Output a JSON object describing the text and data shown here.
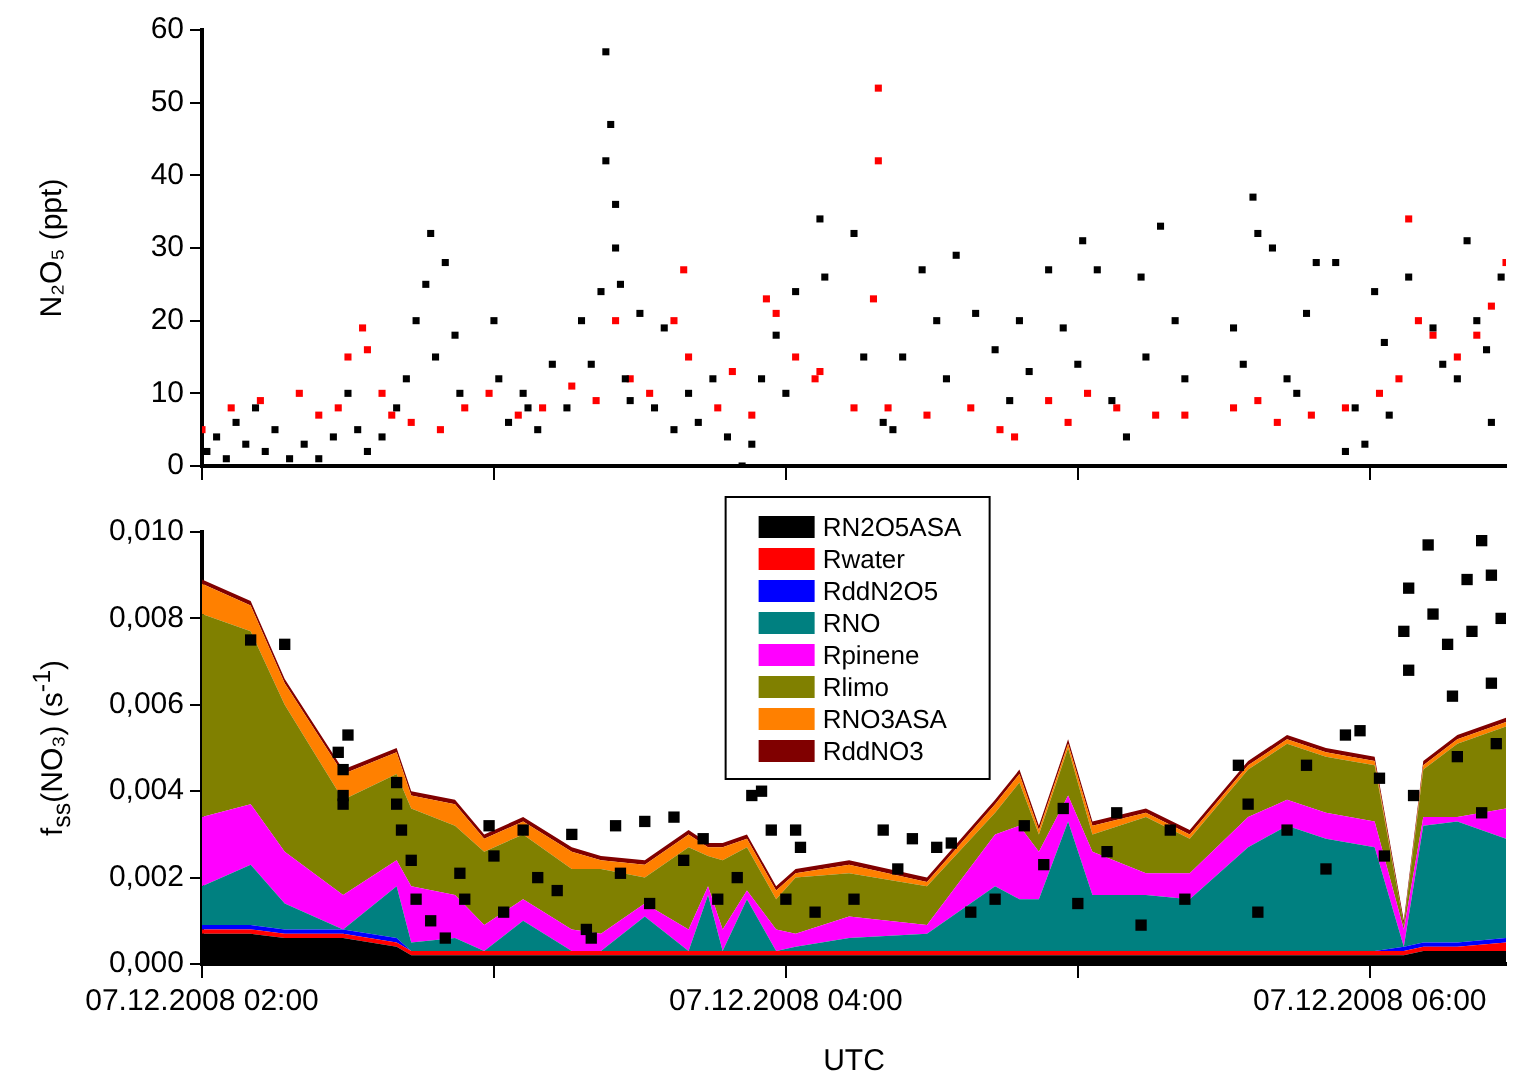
{
  "chart_data": [
    {
      "type": "scatter",
      "ylabel": "N₂O₅ (ppt)",
      "marker": "square",
      "tick_labels": "y",
      "xlim": [
        "2008-12-07T02:00",
        "2008-12-07T06:28"
      ],
      "ylim": [
        0,
        60
      ],
      "yticks": [
        0,
        10,
        20,
        30,
        40,
        50,
        60
      ],
      "xticks": [
        {
          "value": "2008-12-07T02:00",
          "label": null
        },
        {
          "value": "2008-12-07T03:00",
          "label": null
        },
        {
          "value": "2008-12-07T04:00",
          "label": null
        },
        {
          "value": "2008-12-07T05:00",
          "label": null
        },
        {
          "value": "2008-12-07T06:00",
          "label": null
        }
      ],
      "series": [
        {
          "color": "#000000",
          "x": [
            "2008-12-07T02:01",
            "2008-12-07T02:03",
            "2008-12-07T02:05",
            "2008-12-07T02:07",
            "2008-12-07T02:09",
            "2008-12-07T02:11",
            "2008-12-07T02:13",
            "2008-12-07T02:15",
            "2008-12-07T02:18",
            "2008-12-07T02:21",
            "2008-12-07T02:24",
            "2008-12-07T02:27",
            "2008-12-07T02:30",
            "2008-12-07T02:32",
            "2008-12-07T02:34",
            "2008-12-07T02:37",
            "2008-12-07T02:40",
            "2008-12-07T02:42",
            "2008-12-07T02:44",
            "2008-12-07T02:46",
            "2008-12-07T02:47",
            "2008-12-07T02:48",
            "2008-12-07T02:50",
            "2008-12-07T02:52",
            "2008-12-07T02:53",
            "2008-12-07T03:00",
            "2008-12-07T03:01",
            "2008-12-07T03:03",
            "2008-12-07T03:06",
            "2008-12-07T03:09",
            "2008-12-07T03:12",
            "2008-12-07T03:15",
            "2008-12-07T03:18",
            "2008-12-07T03:20",
            "2008-12-07T03:22",
            "2008-12-07T03:23",
            "2008-12-07T03:23",
            "2008-12-07T03:24",
            "2008-12-07T03:25",
            "2008-12-07T03:25",
            "2008-12-07T03:26",
            "2008-12-07T03:27",
            "2008-12-07T03:30",
            "2008-12-07T03:33",
            "2008-12-07T03:35",
            "2008-12-07T03:37",
            "2008-12-07T03:40",
            "2008-12-07T03:42",
            "2008-12-07T03:45",
            "2008-12-07T03:48",
            "2008-12-07T03:51",
            "2008-12-07T03:53",
            "2008-12-07T03:55",
            "2008-12-07T03:58",
            "2008-12-07T04:00",
            "2008-12-07T04:02",
            "2008-12-07T04:07",
            "2008-12-07T04:08",
            "2008-12-07T04:14",
            "2008-12-07T04:16",
            "2008-12-07T04:20",
            "2008-12-07T04:22",
            "2008-12-07T04:28",
            "2008-12-07T04:31",
            "2008-12-07T04:35",
            "2008-12-07T04:39",
            "2008-12-07T04:43",
            "2008-12-07T04:46",
            "2008-12-07T04:50",
            "2008-12-07T04:54",
            "2008-12-07T04:57",
            "2008-12-07T05:01",
            "2008-12-07T05:04",
            "2008-12-07T05:07",
            "2008-12-07T05:10",
            "2008-12-07T05:13",
            "2008-12-07T05:17",
            "2008-12-07T05:20",
            "2008-12-07T05:22",
            "2008-12-07T05:32",
            "2008-12-07T05:36",
            "2008-12-07T05:37",
            "2008-12-07T05:40",
            "2008-12-07T05:43",
            "2008-12-07T05:47",
            "2008-12-07T05:49",
            "2008-12-07T05:53",
            "2008-12-07T05:55",
            "2008-12-07T05:57",
            "2008-12-07T06:01",
            "2008-12-07T06:03",
            "2008-12-07T06:04",
            "2008-12-07T06:08",
            "2008-12-07T06:13",
            "2008-12-07T06:18",
            "2008-12-07T06:20",
            "2008-12-07T06:22",
            "2008-12-07T06:25",
            "2008-12-07T06:27",
            "2008-12-07T03:07",
            "2008-12-07T03:28",
            "2008-12-07T04:24",
            "2008-12-07T04:33",
            "2008-12-07T04:48",
            "2008-12-07T05:00",
            "2008-12-07T05:14",
            "2008-12-07T05:34",
            "2008-12-07T05:45",
            "2008-12-07T05:59",
            "2008-12-07T06:15",
            "2008-12-07T06:24"
          ],
          "values": [
            2,
            4,
            1,
            6,
            3,
            8,
            2,
            5,
            1,
            3,
            1,
            4,
            10,
            5,
            2,
            4,
            8,
            12,
            20,
            25,
            32,
            15,
            28,
            18,
            10,
            20,
            12,
            6,
            10,
            5,
            14,
            8,
            20,
            14,
            24,
            42,
            57,
            47,
            36,
            30,
            25,
            12,
            21,
            8,
            19,
            5,
            10,
            6,
            12,
            4,
            0,
            3,
            12,
            18,
            10,
            24,
            34,
            26,
            32,
            15,
            6,
            5,
            27,
            20,
            29,
            21,
            16,
            9,
            13,
            27,
            19,
            31,
            27,
            9,
            4,
            26,
            33,
            20,
            12,
            19,
            37,
            32,
            30,
            12,
            21,
            28,
            28,
            2,
            8,
            24,
            17,
            7,
            26,
            19,
            12,
            31,
            20,
            6,
            26,
            8,
            9,
            15,
            12,
            20,
            14,
            15,
            14,
            10,
            3,
            14,
            16
          ]
        },
        {
          "color": "#ff0000",
          "x": [
            "2008-12-07T02:00",
            "2008-12-07T02:06",
            "2008-12-07T02:12",
            "2008-12-07T02:20",
            "2008-12-07T02:24",
            "2008-12-07T02:28",
            "2008-12-07T02:30",
            "2008-12-07T02:33",
            "2008-12-07T02:34",
            "2008-12-07T02:37",
            "2008-12-07T02:39",
            "2008-12-07T02:43",
            "2008-12-07T02:49",
            "2008-12-07T02:54",
            "2008-12-07T02:59",
            "2008-12-07T03:05",
            "2008-12-07T03:10",
            "2008-12-07T03:16",
            "2008-12-07T03:21",
            "2008-12-07T03:25",
            "2008-12-07T03:28",
            "2008-12-07T03:32",
            "2008-12-07T03:37",
            "2008-12-07T03:39",
            "2008-12-07T03:40",
            "2008-12-07T03:46",
            "2008-12-07T03:49",
            "2008-12-07T03:53",
            "2008-12-07T03:56",
            "2008-12-07T03:58",
            "2008-12-07T04:02",
            "2008-12-07T04:06",
            "2008-12-07T04:07",
            "2008-12-07T04:14",
            "2008-12-07T04:18",
            "2008-12-07T04:19",
            "2008-12-07T04:19",
            "2008-12-07T04:21",
            "2008-12-07T04:29",
            "2008-12-07T04:38",
            "2008-12-07T04:44",
            "2008-12-07T04:47",
            "2008-12-07T04:54",
            "2008-12-07T04:58",
            "2008-12-07T05:02",
            "2008-12-07T05:08",
            "2008-12-07T05:16",
            "2008-12-07T05:22",
            "2008-12-07T05:32",
            "2008-12-07T05:37",
            "2008-12-07T05:41",
            "2008-12-07T05:48",
            "2008-12-07T05:55",
            "2008-12-07T06:02",
            "2008-12-07T06:06",
            "2008-12-07T06:08",
            "2008-12-07T06:10",
            "2008-12-07T06:13",
            "2008-12-07T06:18",
            "2008-12-07T06:22",
            "2008-12-07T06:25",
            "2008-12-07T06:28"
          ],
          "values": [
            5,
            8,
            9,
            10,
            7,
            8,
            15,
            19,
            16,
            10,
            7,
            6,
            5,
            8,
            10,
            7,
            8,
            11,
            9,
            20,
            12,
            10,
            20,
            27,
            15,
            8,
            13,
            7,
            23,
            21,
            15,
            12,
            13,
            8,
            23,
            42,
            52,
            8,
            7,
            8,
            5,
            4,
            9,
            6,
            10,
            8,
            7,
            7,
            8,
            9,
            6,
            7,
            8,
            10,
            12,
            34,
            20,
            18,
            15,
            18,
            22,
            28
          ]
        }
      ]
    },
    {
      "type": "area",
      "stacked": true,
      "ylabel": "f$_{ss}$(NO₃) (s$^{-1}$)",
      "xlabel": "UTC",
      "legend": "top",
      "xlim": [
        "2008-12-07T02:00",
        "2008-12-07T06:28"
      ],
      "ylim": [
        0,
        0.01
      ],
      "yticks": [
        {
          "value": 0,
          "label": "0,000"
        },
        {
          "value": 0.002,
          "label": "0,002"
        },
        {
          "value": 0.004,
          "label": "0,004"
        },
        {
          "value": 0.006,
          "label": "0,006"
        },
        {
          "value": 0.008,
          "label": "0,008"
        },
        {
          "value": 0.01,
          "label": "0,010"
        }
      ],
      "xticks": [
        {
          "value": "2008-12-07T02:00",
          "label": "07.12.2008 02:00"
        },
        {
          "value": "2008-12-07T03:00",
          "label": null
        },
        {
          "value": "2008-12-07T04:00",
          "label": "07.12.2008 04:00"
        },
        {
          "value": "2008-12-07T05:00",
          "label": null
        },
        {
          "value": "2008-12-07T06:00",
          "label": "07.12.2008 06:00"
        }
      ],
      "x": [
        "2008-12-07T02:00",
        "2008-12-07T02:10",
        "2008-12-07T02:17",
        "2008-12-07T02:29",
        "2008-12-07T02:40",
        "2008-12-07T02:43",
        "2008-12-07T02:52",
        "2008-12-07T02:58",
        "2008-12-07T03:06",
        "2008-12-07T03:16",
        "2008-12-07T03:22",
        "2008-12-07T03:31",
        "2008-12-07T03:40",
        "2008-12-07T03:44",
        "2008-12-07T03:47",
        "2008-12-07T03:52",
        "2008-12-07T03:58",
        "2008-12-07T04:02",
        "2008-12-07T04:13",
        "2008-12-07T04:29",
        "2008-12-07T04:43",
        "2008-12-07T04:48",
        "2008-12-07T04:52",
        "2008-12-07T04:58",
        "2008-12-07T05:03",
        "2008-12-07T05:14",
        "2008-12-07T05:23",
        "2008-12-07T05:35",
        "2008-12-07T05:43",
        "2008-12-07T05:51",
        "2008-12-07T06:01",
        "2008-12-07T06:07",
        "2008-12-07T06:11",
        "2008-12-07T06:18",
        "2008-12-07T06:28"
      ],
      "series": [
        {
          "name": "RN2O5ASA",
          "color": "#000000",
          "values": [
            0.0007,
            0.0007,
            0.0006,
            0.0006,
            0.0004,
            0.0002,
            0.0002,
            0.0002,
            0.0002,
            0.0002,
            0.0002,
            0.0002,
            0.0002,
            0.0002,
            0.0002,
            0.0002,
            0.0002,
            0.0002,
            0.0002,
            0.0002,
            0.0002,
            0.0002,
            0.0002,
            0.0002,
            0.0002,
            0.0002,
            0.0002,
            0.0002,
            0.0002,
            0.0002,
            0.0002,
            0.0002,
            0.0003,
            0.0003,
            0.0003
          ]
        },
        {
          "name": "Rwater",
          "color": "#ff0000",
          "values": [
            0.0001,
            0.0001,
            0.0001,
            0.0001,
            0.0001,
            0.0001,
            0.0001,
            0.0001,
            0.0001,
            0.0001,
            0.0001,
            0.0001,
            0.0001,
            0.0001,
            0.0001,
            0.0001,
            0.0001,
            0.0001,
            0.0001,
            0.0001,
            0.0001,
            0.0001,
            0.0001,
            0.0001,
            0.0001,
            0.0001,
            0.0001,
            0.0001,
            0.0001,
            0.0001,
            0.0001,
            0.0001,
            0.0001,
            0.0001,
            0.0002
          ]
        },
        {
          "name": "RddN2O5",
          "color": "#0000ff",
          "values": [
            0.0001,
            0.0001,
            0.0001,
            0.0001,
            0.0001,
            0,
            0,
            0,
            0,
            0,
            0,
            0,
            0,
            0,
            0,
            0,
            0,
            0,
            0,
            0,
            0,
            0,
            0,
            0,
            0,
            0,
            0,
            0,
            0,
            0,
            0,
            0.0001,
            0.0001,
            0.0001,
            0.0001
          ]
        },
        {
          "name": "RNO",
          "color": "#008080",
          "values": [
            0.0009,
            0.0014,
            0.0006,
            0,
            0.0012,
            0.0002,
            0.0003,
            0,
            0.0007,
            0,
            0,
            0.0008,
            0,
            0.0013,
            0,
            0.0012,
            0,
            0.0001,
            0.0003,
            0.0004,
            0.0015,
            0.0012,
            0.0012,
            0.003,
            0.0013,
            0.0013,
            0.0012,
            0.0024,
            0.0029,
            0.0026,
            0.0024,
            0,
            0.0027,
            0.0028,
            0.0023
          ]
        },
        {
          "name": "Rpinene",
          "color": "#ff00ff",
          "values": [
            0.0016,
            0.0014,
            0.0012,
            0.0008,
            0.0006,
            0.0013,
            0.001,
            0.0006,
            0.0005,
            0.0005,
            0.0004,
            0.0003,
            0.0005,
            0.0002,
            0.0005,
            0.0002,
            0.0005,
            0.0003,
            0.0005,
            0.0002,
            0.0012,
            0.0017,
            0.0011,
            0.0006,
            0.001,
            0.0005,
            0.0006,
            0.0007,
            0.0006,
            0.0006,
            0.0006,
            0.0004,
            0.0002,
            0.0001,
            0.0007
          ]
        },
        {
          "name": "Rlimo",
          "color": "#808000",
          "values": [
            0.0047,
            0.004,
            0.0034,
            0.0022,
            0.002,
            0.0018,
            0.0016,
            0.0017,
            0.0015,
            0.0014,
            0.0015,
            0.0006,
            0.0019,
            0.0007,
            0.0016,
            0.001,
            0.0007,
            0.0013,
            0.001,
            0.0009,
            0.0005,
            0.001,
            0.0004,
            0.0011,
            0.0004,
            0.0013,
            0.0008,
            0.0011,
            0.0013,
            0.0013,
            0.0013,
            0.0001,
            0.0011,
            0.0017,
            0.0019
          ]
        },
        {
          "name": "RNO3ASA",
          "color": "#ff8000",
          "values": [
            0.0007,
            0.0006,
            0.0005,
            0.0006,
            0.0005,
            0.0003,
            0.0005,
            0.0003,
            0.0003,
            0.0004,
            0.0002,
            0.0003,
            0.0003,
            0.0002,
            0.0003,
            0.0002,
            0.0002,
            0.0001,
            0.0002,
            0.0001,
            0.0002,
            0.0002,
            0.0001,
            0.0001,
            0.0002,
            0.0001,
            0.0001,
            0.0001,
            0.0001,
            0.0001,
            0.0001,
            0,
            0.0001,
            0.0001,
            0.0001
          ]
        },
        {
          "name": "RddNO3",
          "color": "#800000",
          "values": [
            0.0001,
            0.0001,
            0.0001,
            0.0001,
            0.0001,
            0.0001,
            0.0001,
            0.0001,
            0.0001,
            0.0001,
            0.0001,
            0.0001,
            0.0001,
            0.0001,
            0.0001,
            0.0001,
            0.0001,
            0.0001,
            0.0001,
            0.0001,
            0.0001,
            0.0001,
            0.0001,
            0.0001,
            0.0001,
            0.0001,
            0.0001,
            0.0001,
            0.0001,
            0.0001,
            0.0001,
            0.0001,
            0.0001,
            0.0001,
            0.0001
          ]
        },
        {
          "type": "scatter",
          "marker": "square",
          "color": "#000000",
          "x": [
            "2008-12-07T02:10",
            "2008-12-07T02:17",
            "2008-12-07T02:28",
            "2008-12-07T02:30",
            "2008-12-07T02:29",
            "2008-12-07T02:29",
            "2008-12-07T02:29",
            "2008-12-07T02:40",
            "2008-12-07T02:40",
            "2008-12-07T02:41",
            "2008-12-07T02:43",
            "2008-12-07T02:44",
            "2008-12-07T02:47",
            "2008-12-07T02:50",
            "2008-12-07T02:53",
            "2008-12-07T02:54",
            "2008-12-07T02:59",
            "2008-12-07T03:00",
            "2008-12-07T03:02",
            "2008-12-07T03:06",
            "2008-12-07T03:09",
            "2008-12-07T03:13",
            "2008-12-07T03:16",
            "2008-12-07T03:19",
            "2008-12-07T03:20",
            "2008-12-07T03:25",
            "2008-12-07T03:26",
            "2008-12-07T03:31",
            "2008-12-07T03:32",
            "2008-12-07T03:37",
            "2008-12-07T03:39",
            "2008-12-07T03:43",
            "2008-12-07T03:46",
            "2008-12-07T03:50",
            "2008-12-07T03:53",
            "2008-12-07T03:55",
            "2008-12-07T03:57",
            "2008-12-07T04:00",
            "2008-12-07T04:03",
            "2008-12-07T04:02",
            "2008-12-07T04:06",
            "2008-12-07T04:14",
            "2008-12-07T04:20",
            "2008-12-07T04:23",
            "2008-12-07T04:26",
            "2008-12-07T04:31",
            "2008-12-07T04:34",
            "2008-12-07T04:38",
            "2008-12-07T04:43",
            "2008-12-07T04:49",
            "2008-12-07T04:53",
            "2008-12-07T04:57",
            "2008-12-07T05:00",
            "2008-12-07T05:06",
            "2008-12-07T05:08",
            "2008-12-07T05:13",
            "2008-12-07T05:19",
            "2008-12-07T05:22",
            "2008-12-07T05:33",
            "2008-12-07T05:35",
            "2008-12-07T05:37",
            "2008-12-07T05:43",
            "2008-12-07T05:47",
            "2008-12-07T05:51",
            "2008-12-07T05:55",
            "2008-12-07T05:58",
            "2008-12-07T06:02",
            "2008-12-07T06:03",
            "2008-12-07T06:07",
            "2008-12-07T06:08",
            "2008-12-07T06:08",
            "2008-12-07T06:09",
            "2008-12-07T06:12",
            "2008-12-07T06:13",
            "2008-12-07T06:16",
            "2008-12-07T06:17",
            "2008-12-07T06:18",
            "2008-12-07T06:20",
            "2008-12-07T06:21",
            "2008-12-07T06:23",
            "2008-12-07T06:23",
            "2008-12-07T06:25",
            "2008-12-07T06:25",
            "2008-12-07T06:27",
            "2008-12-07T06:26"
          ],
          "values": [
            0.0075,
            0.0074,
            0.0049,
            0.0053,
            0.0045,
            0.0039,
            0.0037,
            0.0042,
            0.0037,
            0.0031,
            0.0024,
            0.0015,
            0.001,
            0.0006,
            0.0021,
            0.0015,
            0.0032,
            0.0025,
            0.0012,
            0.0031,
            0.002,
            0.0017,
            0.003,
            0.0008,
            0.0006,
            0.0032,
            0.0021,
            0.0033,
            0.0014,
            0.0034,
            0.0024,
            0.0029,
            0.0015,
            0.002,
            0.0039,
            0.004,
            0.0031,
            0.0015,
            0.0027,
            0.0031,
            0.0012,
            0.0015,
            0.0031,
            0.0022,
            0.0029,
            0.0027,
            0.0028,
            0.0012,
            0.0015,
            0.0032,
            0.0023,
            0.0036,
            0.0014,
            0.0026,
            0.0035,
            0.0009,
            0.0031,
            0.0015,
            0.0046,
            0.0037,
            0.0012,
            0.0031,
            0.0046,
            0.0022,
            0.0053,
            0.0054,
            0.0043,
            0.0025,
            0.0077,
            0.0087,
            0.0068,
            0.0039,
            0.0097,
            0.0081,
            0.0074,
            0.0062,
            0.0048,
            0.0089,
            0.0077,
            0.0098,
            0.0035,
            0.009,
            0.0065,
            0.008,
            0.0051
          ]
        }
      ]
    }
  ]
}
